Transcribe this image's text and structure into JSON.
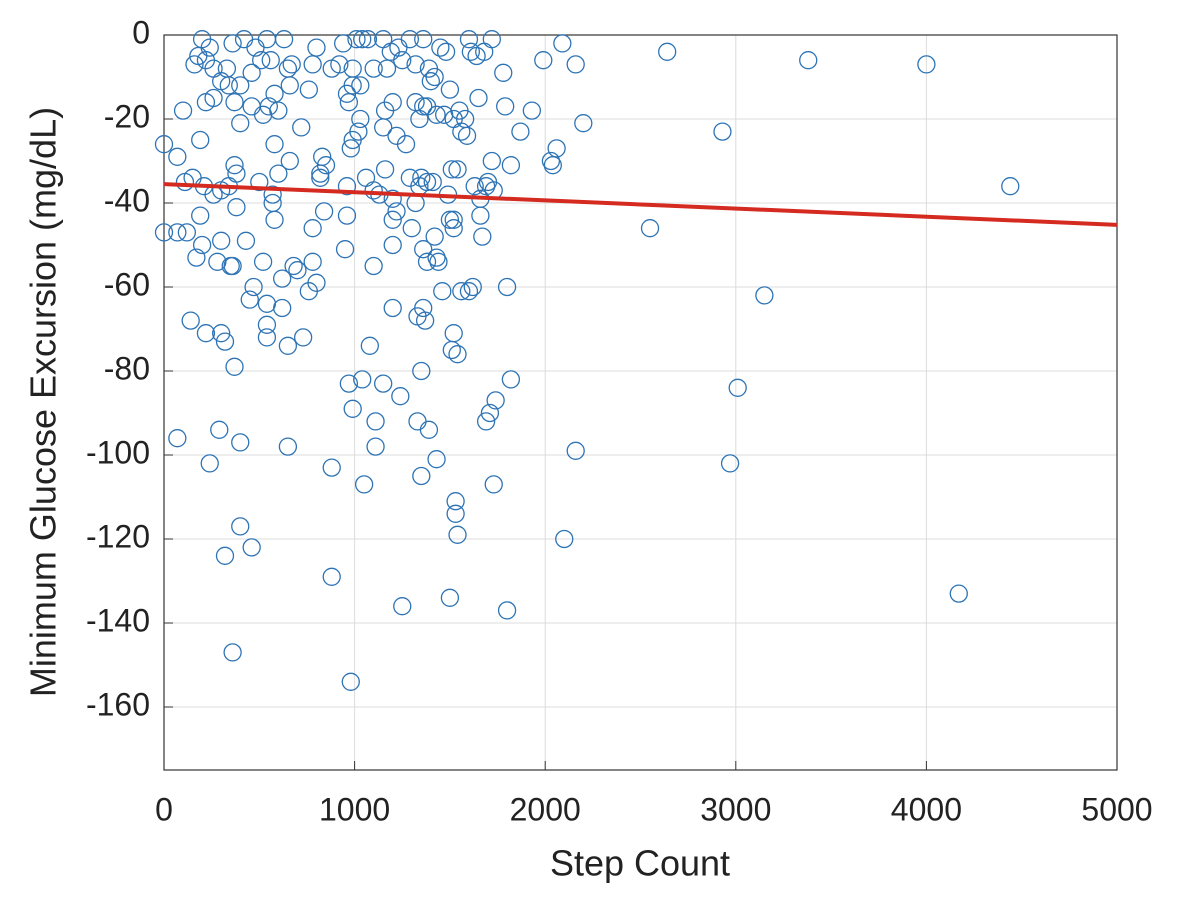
{
  "chart_data": {
    "type": "scatter",
    "x_label": "Step Count",
    "y_label": "Minimum Glucose Excursion (mg/dL)",
    "xlim": [
      0,
      5000
    ],
    "xticks": [
      0,
      1000,
      2000,
      3000,
      4000,
      5000
    ],
    "ylim": [
      -175,
      0
    ],
    "yticks": [
      0,
      -20,
      -40,
      -60,
      -80,
      -100,
      -120,
      -140,
      -160
    ],
    "grid": true,
    "color": "#2e74b5",
    "x": [
      2640,
      3380,
      4000,
      4440,
      2550,
      2930,
      3150,
      3010,
      2970,
      4170,
      2100,
      2160,
      2200,
      2160,
      2090,
      1990,
      2040,
      2060,
      2030,
      1930,
      1870,
      1820,
      1800,
      1820,
      1800,
      1780,
      1790,
      1740,
      1730,
      1710,
      1690,
      1720,
      1700,
      1720,
      1670,
      1660,
      1680,
      1650,
      1620,
      1600,
      1560,
      1530,
      1530,
      1540,
      1500,
      1540,
      1520,
      1510,
      1350,
      1330,
      1390,
      1430,
      1350,
      1240,
      1250,
      1150,
      1110,
      1110,
      1050,
      1040,
      970,
      990,
      880,
      880,
      980,
      1080,
      1200,
      1330,
      1360,
      1370,
      1460,
      1100,
      1200,
      1360,
      1380,
      1430,
      1440,
      1520,
      1500,
      1420,
      950,
      960,
      840,
      780,
      780,
      760,
      800,
      730,
      700,
      680,
      650,
      650,
      620,
      620,
      540,
      540,
      540,
      520,
      470,
      450,
      430,
      380,
      370,
      400,
      400,
      460,
      320,
      360,
      290,
      240,
      70,
      140,
      220,
      320,
      300,
      360,
      350,
      280,
      300,
      200,
      170,
      120,
      70,
      0,
      0,
      70,
      110,
      150,
      190,
      210,
      260,
      300,
      340,
      370,
      380,
      500,
      570,
      570,
      580,
      600,
      660,
      820,
      820,
      830,
      850,
      960,
      980,
      990,
      1030,
      1020,
      1060,
      1100,
      1130,
      1160,
      1200,
      1220,
      1200,
      1290,
      1300,
      1320,
      1340,
      1350,
      1380,
      1410,
      1490,
      1510,
      1540,
      1520,
      1630,
      1660,
      1690,
      1730,
      100,
      190,
      220,
      260,
      370,
      400,
      460,
      520,
      550,
      580,
      600,
      580,
      720,
      760,
      660,
      650,
      670,
      780,
      800,
      880,
      920,
      940,
      960,
      990,
      1010,
      1040,
      1070,
      1100,
      1150,
      1170,
      1190,
      1230,
      1250,
      1290,
      1320,
      1360,
      1390,
      1400,
      1420,
      1450,
      1480,
      1500,
      1520,
      1550,
      1580,
      1600,
      1610,
      1640,
      1560,
      1590,
      1470,
      1430,
      1360,
      1380,
      1340,
      1320,
      1270,
      1220,
      1200,
      1160,
      1150,
      1030,
      970,
      990,
      200,
      220,
      240,
      260,
      160,
      180,
      300,
      330,
      360,
      420,
      480,
      540,
      560,
      630,
      460,
      510,
      400,
      340
    ],
    "values": [
      -4,
      -6,
      -7,
      -36,
      -46,
      -23,
      -62,
      -84,
      -102,
      -133,
      -120,
      -99,
      -21,
      -7,
      -2,
      -6,
      -31,
      -27,
      -30,
      -18,
      -23,
      -31,
      -60,
      -82,
      -137,
      -9,
      -17,
      -87,
      -107,
      -90,
      -92,
      -1,
      -35,
      -30,
      -48,
      -43,
      -4,
      -15,
      -60,
      -61,
      -61,
      -111,
      -114,
      -119,
      -134,
      -76,
      -71,
      -75,
      -80,
      -92,
      -94,
      -101,
      -105,
      -86,
      -136,
      -83,
      -92,
      -98,
      -107,
      -82,
      -83,
      -89,
      -103,
      -129,
      -154,
      -74,
      -65,
      -67,
      -65,
      -68,
      -61,
      -55,
      -50,
      -51,
      -54,
      -53,
      -54,
      -46,
      -44,
      -48,
      -51,
      -43,
      -42,
      -46,
      -54,
      -61,
      -59,
      -72,
      -56,
      -55,
      -74,
      -98,
      -58,
      -65,
      -72,
      -69,
      -64,
      -54,
      -60,
      -63,
      -49,
      -41,
      -79,
      -97,
      -117,
      -122,
      -124,
      -147,
      -94,
      -102,
      -96,
      -68,
      -71,
      -73,
      -71,
      -55,
      -55,
      -54,
      -49,
      -50,
      -53,
      -47,
      -47,
      -47,
      -26,
      -29,
      -35,
      -34,
      -43,
      -36,
      -38,
      -37,
      -36,
      -31,
      -33,
      -35,
      -38,
      -40,
      -44,
      -33,
      -30,
      -33,
      -34,
      -29,
      -31,
      -36,
      -27,
      -25,
      -20,
      -23,
      -34,
      -37,
      -38,
      -32,
      -39,
      -42,
      -44,
      -34,
      -46,
      -40,
      -36,
      -34,
      -35,
      -35,
      -38,
      -32,
      -32,
      -44,
      -36,
      -39,
      -36,
      -37,
      -18,
      -25,
      -16,
      -15,
      -16,
      -21,
      -17,
      -19,
      -17,
      -26,
      -18,
      -14,
      -22,
      -13,
      -12,
      -8,
      -7,
      -7,
      -3,
      -8,
      -7,
      -2,
      -14,
      -8,
      -1,
      -1,
      -1,
      -8,
      -1,
      -8,
      -4,
      -3,
      -6,
      -1,
      -7,
      -1,
      -8,
      -11,
      -10,
      -3,
      -4,
      -13,
      -20,
      -18,
      -20,
      -1,
      -4,
      -5,
      -23,
      -24,
      -19,
      -19,
      -17,
      -17,
      -20,
      -16,
      -26,
      -24,
      -16,
      -18,
      -22,
      -12,
      -16,
      -12,
      -1,
      -6,
      -3,
      -8,
      -7,
      -5,
      -11,
      -8,
      -2,
      -1,
      -3,
      -1,
      -6,
      -1,
      -9,
      -6,
      -12,
      -12
    ],
    "fit": {
      "x": [
        0,
        5000
      ],
      "values": [
        -35.5,
        -45.2
      ],
      "color": "#d42a20"
    }
  }
}
